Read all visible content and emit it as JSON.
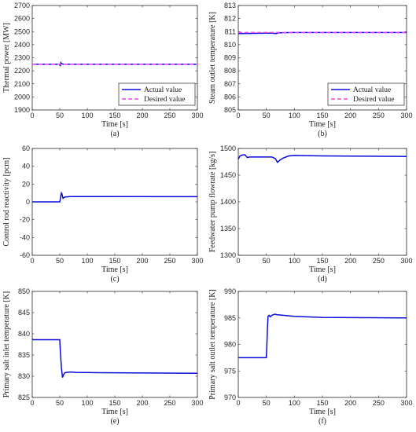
{
  "colors": {
    "actual": "#0a0adb",
    "desired": "#ff33ff"
  },
  "chart_data": [
    {
      "type": "line",
      "caption": "(a)",
      "xlabel": "Time [s]",
      "ylabel": "Thermal power [MW]",
      "xlim": [
        0,
        300
      ],
      "ylim": [
        1900,
        2700
      ],
      "xticks": [
        "0",
        "50",
        "100",
        "150",
        "200",
        "250",
        "300"
      ],
      "yticks": [
        "1900",
        "2000",
        "2100",
        "2200",
        "2300",
        "2400",
        "2500",
        "2600",
        "2700"
      ],
      "legend": {
        "position": "bottom-right",
        "entries": [
          "Actual value",
          "Desired value"
        ]
      },
      "series": [
        {
          "name": "Actual value",
          "style": "solid",
          "x": [
            0,
            50,
            51,
            52,
            53,
            55,
            58,
            62,
            70,
            300
          ],
          "y": [
            2250,
            2250,
            2235,
            2262,
            2256,
            2252,
            2250,
            2250,
            2250,
            2250
          ]
        },
        {
          "name": "Desired value",
          "style": "dashed",
          "x": [
            0,
            300
          ],
          "y": [
            2250,
            2250
          ]
        }
      ]
    },
    {
      "type": "line",
      "caption": "(b)",
      "xlabel": "Time [s]",
      "ylabel": "Steam outlet temperature [K]",
      "xlim": [
        0,
        300
      ],
      "ylim": [
        805,
        813
      ],
      "xticks": [
        "0",
        "50",
        "100",
        "150",
        "200",
        "250",
        "300"
      ],
      "yticks": [
        "805",
        "806",
        "807",
        "808",
        "809",
        "810",
        "811",
        "812",
        "813"
      ],
      "legend": {
        "position": "bottom-right",
        "entries": [
          "Actual value",
          "Desired value"
        ]
      },
      "series": [
        {
          "name": "Actual value",
          "style": "solid",
          "x": [
            0,
            50,
            60,
            68,
            72,
            80,
            100,
            300
          ],
          "y": [
            810.85,
            810.88,
            810.88,
            810.85,
            810.9,
            810.92,
            810.93,
            810.93
          ]
        },
        {
          "name": "Desired value",
          "style": "dashed",
          "x": [
            0,
            300
          ],
          "y": [
            810.93,
            810.93
          ]
        }
      ]
    },
    {
      "type": "line",
      "caption": "(c)",
      "xlabel": "Time [s]",
      "ylabel": "Control rod reactivity [pcm]",
      "xlim": [
        0,
        300
      ],
      "ylim": [
        -60,
        60
      ],
      "xticks": [
        "0",
        "50",
        "100",
        "150",
        "200",
        "250",
        "300"
      ],
      "yticks": [
        "-60",
        "-40",
        "-20",
        "0",
        "20",
        "40",
        "60"
      ],
      "series": [
        {
          "name": "",
          "style": "solid",
          "x": [
            0,
            50,
            51,
            52,
            53,
            54,
            55,
            56,
            58,
            60,
            70,
            100,
            300
          ],
          "y": [
            0,
            0,
            3,
            7,
            10,
            9,
            6,
            4,
            5,
            5.5,
            6,
            6,
            5.8
          ]
        }
      ]
    },
    {
      "type": "line",
      "caption": "(d)",
      "xlabel": "Time [s]",
      "ylabel": "Feedwater pump flowrate [kg/s]",
      "xlim": [
        0,
        300
      ],
      "ylim": [
        1300,
        1500
      ],
      "xticks": [
        "0",
        "50",
        "100",
        "150",
        "200",
        "250",
        "300"
      ],
      "yticks": [
        "1300",
        "1350",
        "1400",
        "1450",
        "1500"
      ],
      "series": [
        {
          "name": "",
          "style": "solid",
          "x": [
            0,
            3,
            8,
            12,
            16,
            20,
            60,
            66,
            70,
            74,
            80,
            90,
            100,
            150,
            300
          ],
          "y": [
            1480,
            1486,
            1488,
            1488,
            1483,
            1484,
            1484,
            1481,
            1474,
            1478,
            1482,
            1486,
            1487,
            1486,
            1485
          ]
        }
      ]
    },
    {
      "type": "line",
      "caption": "(e)",
      "xlabel": "Time [s]",
      "ylabel": "Primary salt inlet temperature [K]",
      "xlim": [
        0,
        300
      ],
      "ylim": [
        825,
        850
      ],
      "xticks": [
        "0",
        "50",
        "100",
        "150",
        "200",
        "250",
        "300"
      ],
      "yticks": [
        "825",
        "830",
        "835",
        "840",
        "845",
        "850"
      ],
      "series": [
        {
          "name": "",
          "style": "solid",
          "x": [
            0,
            2,
            50,
            51,
            53,
            55,
            57,
            59,
            62,
            70,
            80,
            150,
            300
          ],
          "y": [
            838.8,
            838.6,
            838.6,
            836,
            832,
            829.7,
            830.4,
            830.8,
            830.9,
            831,
            830.9,
            830.8,
            830.7
          ]
        }
      ]
    },
    {
      "type": "line",
      "caption": "(f)",
      "xlabel": "Time [s]",
      "ylabel": "Primary salt outlet temperature [K]",
      "xlim": [
        0,
        300
      ],
      "ylim": [
        970,
        990
      ],
      "xticks": [
        "0",
        "50",
        "100",
        "150",
        "200",
        "250",
        "300"
      ],
      "yticks": [
        "970",
        "975",
        "980",
        "985",
        "990"
      ],
      "series": [
        {
          "name": "",
          "style": "solid",
          "x": [
            0,
            50,
            51,
            52,
            53,
            55,
            57,
            60,
            65,
            70,
            100,
            150,
            300
          ],
          "y": [
            977.5,
            977.5,
            980,
            983,
            985.3,
            985.5,
            985.2,
            985.5,
            985.7,
            985.6,
            985.3,
            985.1,
            985
          ]
        }
      ]
    }
  ]
}
